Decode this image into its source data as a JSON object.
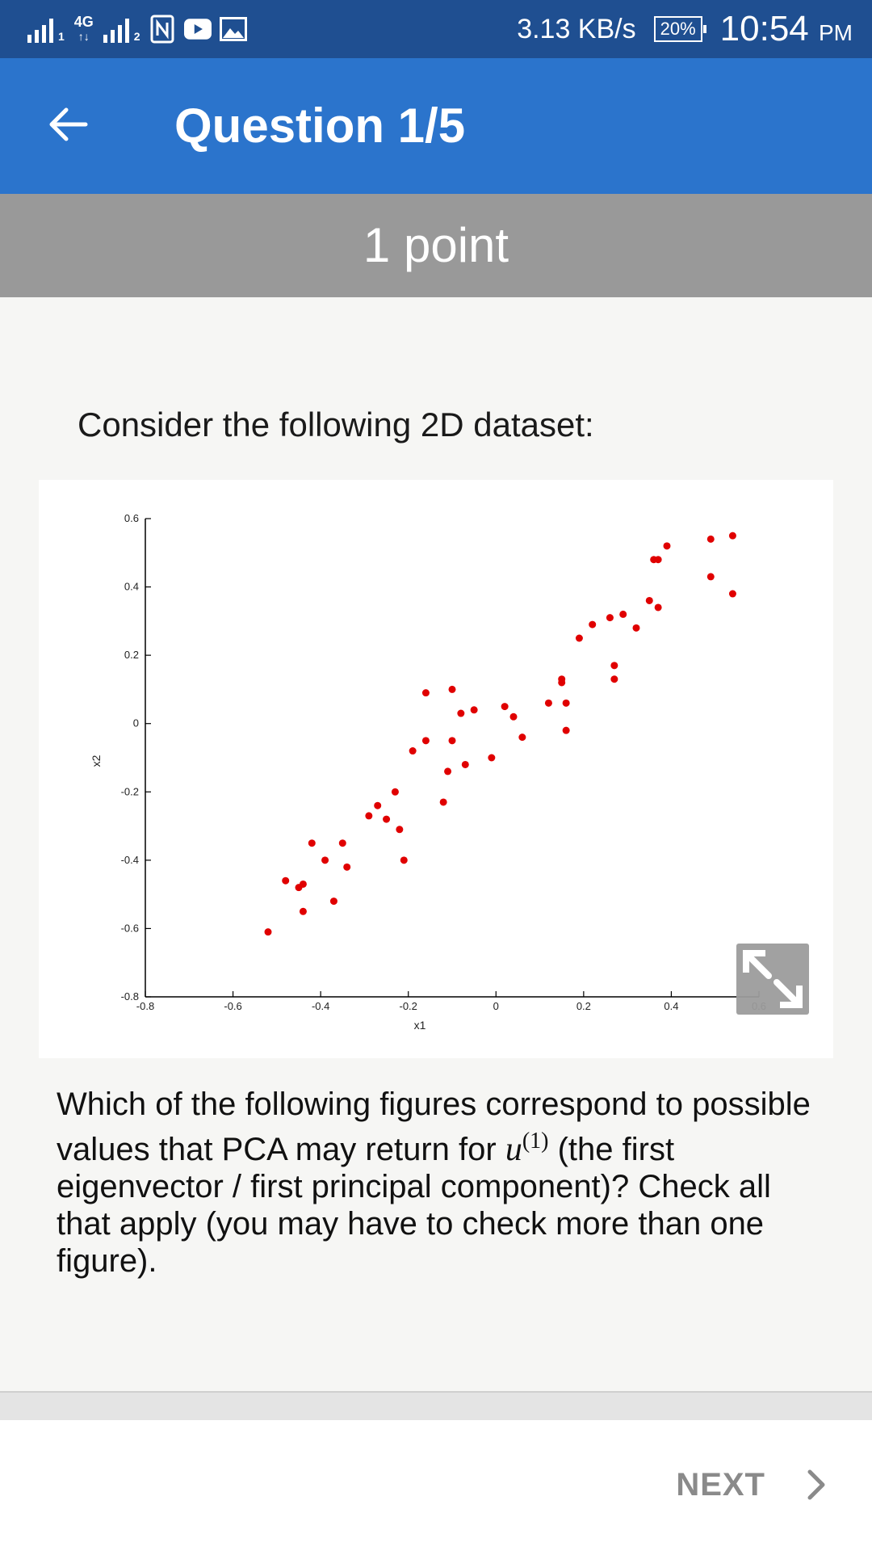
{
  "status_bar": {
    "network": "4G",
    "sim1": "1",
    "sim2": "2",
    "speed": "3.13 KB/s",
    "battery": "20%",
    "time": "10:54",
    "ampm": "PM"
  },
  "app_bar": {
    "title": "Question 1/5"
  },
  "points": "1 point",
  "prompt": "Consider the following 2D dataset:",
  "question": {
    "before": "Which of the following figures correspond to possible values that PCA may return for ",
    "symbol": "u",
    "superscript": "(1)",
    "after": " (the first eigenvector / first principal component)? Check all that apply (you may have to check more than one figure)."
  },
  "footer": {
    "next_label": "NEXT"
  },
  "colors": {
    "status_bar": "#1f4f91",
    "app_bar": "#2b74cc",
    "points_bar": "#999999",
    "marker": "#e00000"
  },
  "chart_data": {
    "type": "scatter",
    "xlabel": "x1",
    "ylabel": "x2",
    "xlim": [
      -0.8,
      0.6
    ],
    "ylim": [
      -0.8,
      0.6
    ],
    "xticks": [
      "-0.8",
      "-0.6",
      "-0.4",
      "-0.2",
      "0",
      "0.2",
      "0.4",
      "0.6"
    ],
    "yticks": [
      "0.6",
      "0.4",
      "0.2",
      "0",
      "-0.2",
      "-0.4",
      "-0.6",
      "-0.8"
    ],
    "series": [
      {
        "marker_color": "#e00000",
        "points": [
          [
            -0.52,
            -0.61
          ],
          [
            -0.48,
            -0.46
          ],
          [
            -0.45,
            -0.48
          ],
          [
            -0.44,
            -0.47
          ],
          [
            -0.44,
            -0.55
          ],
          [
            -0.42,
            -0.35
          ],
          [
            -0.39,
            -0.4
          ],
          [
            -0.37,
            -0.52
          ],
          [
            -0.35,
            -0.35
          ],
          [
            -0.34,
            -0.42
          ],
          [
            -0.29,
            -0.27
          ],
          [
            -0.27,
            -0.24
          ],
          [
            -0.25,
            -0.28
          ],
          [
            -0.23,
            -0.2
          ],
          [
            -0.22,
            -0.31
          ],
          [
            -0.21,
            -0.4
          ],
          [
            -0.19,
            -0.08
          ],
          [
            -0.16,
            -0.05
          ],
          [
            -0.16,
            0.09
          ],
          [
            -0.12,
            -0.23
          ],
          [
            -0.11,
            -0.14
          ],
          [
            -0.1,
            0.1
          ],
          [
            -0.1,
            -0.05
          ],
          [
            -0.08,
            0.03
          ],
          [
            -0.07,
            -0.12
          ],
          [
            -0.05,
            0.04
          ],
          [
            -0.01,
            -0.1
          ],
          [
            0.02,
            0.05
          ],
          [
            0.04,
            0.02
          ],
          [
            0.06,
            -0.04
          ],
          [
            0.12,
            0.06
          ],
          [
            0.15,
            0.13
          ],
          [
            0.15,
            0.12
          ],
          [
            0.16,
            0.06
          ],
          [
            0.16,
            -0.02
          ],
          [
            0.19,
            0.25
          ],
          [
            0.22,
            0.29
          ],
          [
            0.26,
            0.31
          ],
          [
            0.27,
            0.17
          ],
          [
            0.27,
            0.13
          ],
          [
            0.29,
            0.32
          ],
          [
            0.32,
            0.28
          ],
          [
            0.35,
            0.36
          ],
          [
            0.36,
            0.48
          ],
          [
            0.37,
            0.34
          ],
          [
            0.37,
            0.48
          ],
          [
            0.39,
            0.52
          ],
          [
            0.49,
            0.54
          ],
          [
            0.49,
            0.43
          ],
          [
            0.54,
            0.55
          ],
          [
            0.54,
            0.38
          ]
        ]
      }
    ]
  }
}
